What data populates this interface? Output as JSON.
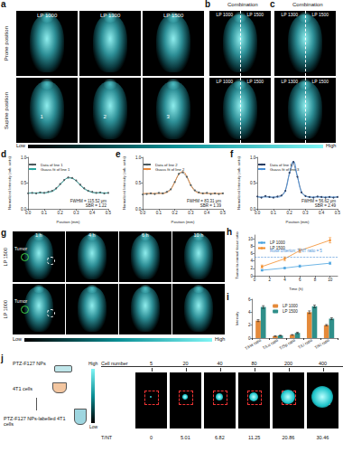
{
  "panel_a": {
    "letter": "a",
    "columns": [
      "LP 1000",
      "LP 1300",
      "LP 1500"
    ],
    "rows": [
      "Prone position",
      "Supine position"
    ],
    "markers": [
      "1",
      "2",
      "3"
    ]
  },
  "panel_b": {
    "letter": "b",
    "title": "Combination",
    "labels": [
      "LP 1000",
      "LP 1500"
    ]
  },
  "panel_c": {
    "letter": "c",
    "title": "Combination",
    "labels": [
      "LP 1300",
      "LP 1500"
    ]
  },
  "colorbar": {
    "low": "Low",
    "high": "High"
  },
  "panel_g": {
    "letter": "g",
    "times": [
      "1 h",
      "4 h",
      "6 h",
      "10 h"
    ],
    "rows": [
      "LP 1500",
      "LP 1000"
    ],
    "tumor_label": "Tumor"
  },
  "panel_j": {
    "letter": "j",
    "nps": "PTZ-F127 NPs",
    "cells": "4T1 cells",
    "labelled": "PTZ-F127 NPs-labelled 4T1 cells",
    "cell_number_label": "Cell number",
    "cell_numbers": [
      5,
      20,
      40,
      80,
      200,
      400
    ],
    "tnt_label": "T/NT",
    "tnt_values": [
      0,
      5.01,
      6.82,
      11.25,
      20.86,
      30.46
    ]
  },
  "chart_data": [
    {
      "letter": "d",
      "type": "line",
      "x_label": "Position (mm)",
      "y_label": "Normalized Intensity (arb. units)",
      "x": [
        0,
        0.025,
        0.05,
        0.075,
        0.1,
        0.125,
        0.15,
        0.175,
        0.2,
        0.225,
        0.25,
        0.275,
        0.3,
        0.325,
        0.35,
        0.375,
        0.4,
        0.425,
        0.45,
        0.475,
        0.5
      ],
      "series": [
        {
          "name": "Data of line 1",
          "color": "#4d5a5e",
          "marker": "circle",
          "values": [
            0.3,
            0.31,
            0.3,
            0.32,
            0.31,
            0.33,
            0.35,
            0.4,
            0.48,
            0.56,
            0.61,
            0.6,
            0.55,
            0.47,
            0.4,
            0.35,
            0.33,
            0.31,
            0.32,
            0.3,
            0.31
          ]
        },
        {
          "name": "Guass fit of line 1",
          "color": "#2aa6a0",
          "marker": "none",
          "values": [
            0.31,
            0.31,
            0.31,
            0.31,
            0.31,
            0.32,
            0.34,
            0.39,
            0.47,
            0.55,
            0.6,
            0.59,
            0.54,
            0.46,
            0.39,
            0.35,
            0.32,
            0.31,
            0.31,
            0.31,
            0.31
          ]
        }
      ],
      "xlim": [
        0,
        0.5
      ],
      "xticks": [
        {
          "value": 0,
          "label": "0.0"
        },
        0.1,
        0.2,
        0.3,
        0.4,
        0.5
      ],
      "ylim": [
        0,
        1
      ],
      "yticks": [
        {
          "value": 0,
          "label": "0.0"
        },
        0.5,
        {
          "value": 1,
          "label": "1.0"
        }
      ],
      "annotations": [
        "FWHM = 115.52 μm",
        "SBR = 1.22"
      ],
      "legend": "upper left",
      "grid": false
    },
    {
      "letter": "e",
      "type": "line",
      "x_label": "Position (mm)",
      "y_label": "Normalized Intensity (arb. units)",
      "x": [
        0,
        0.025,
        0.05,
        0.075,
        0.1,
        0.125,
        0.15,
        0.175,
        0.2,
        0.225,
        0.25,
        0.275,
        0.3,
        0.325,
        0.35,
        0.375,
        0.4,
        0.425,
        0.45,
        0.475,
        0.5
      ],
      "series": [
        {
          "name": "Data of line 2",
          "color": "#4d5a5e",
          "marker": "circle",
          "values": [
            0.28,
            0.29,
            0.3,
            0.29,
            0.31,
            0.3,
            0.33,
            0.38,
            0.52,
            0.68,
            0.71,
            0.62,
            0.46,
            0.36,
            0.32,
            0.3,
            0.31,
            0.29,
            0.3,
            0.29,
            0.3
          ]
        },
        {
          "name": "Guass fit of line 2",
          "color": "#e88a3c",
          "marker": "none",
          "values": [
            0.3,
            0.3,
            0.3,
            0.3,
            0.3,
            0.3,
            0.32,
            0.38,
            0.52,
            0.67,
            0.72,
            0.63,
            0.46,
            0.35,
            0.31,
            0.3,
            0.3,
            0.3,
            0.3,
            0.3,
            0.3
          ]
        }
      ],
      "xlim": [
        0,
        0.5
      ],
      "xticks": [
        {
          "value": 0,
          "label": "0.0"
        },
        0.1,
        0.2,
        0.3,
        0.4,
        0.5
      ],
      "ylim": [
        0,
        1
      ],
      "yticks": [
        {
          "value": 0,
          "label": "0.0"
        },
        0.5,
        {
          "value": 1,
          "label": "1.0"
        }
      ],
      "annotations": [
        "FWHM = 83.31 μm",
        "SBR = 1.39"
      ],
      "legend": "upper left",
      "grid": false
    },
    {
      "letter": "f",
      "type": "line",
      "x_label": "Position (mm)",
      "y_label": "Normalized Intensity (arb. units)",
      "x": [
        0,
        0.025,
        0.05,
        0.075,
        0.1,
        0.125,
        0.15,
        0.175,
        0.2,
        0.225,
        0.25,
        0.275,
        0.3,
        0.325,
        0.35,
        0.375,
        0.4,
        0.425,
        0.45,
        0.475,
        0.5
      ],
      "series": [
        {
          "name": "Data of line 3",
          "color": "#2b3f63",
          "marker": "circle",
          "values": [
            0.24,
            0.22,
            0.25,
            0.23,
            0.22,
            0.24,
            0.26,
            0.35,
            0.7,
            0.91,
            0.62,
            0.32,
            0.25,
            0.23,
            0.22,
            0.24,
            0.23,
            0.22,
            0.23,
            0.22,
            0.23
          ]
        },
        {
          "name": "Guass fit of line 3",
          "color": "#4a8fd6",
          "marker": "none",
          "values": [
            0.23,
            0.23,
            0.23,
            0.23,
            0.23,
            0.23,
            0.25,
            0.36,
            0.68,
            0.92,
            0.63,
            0.33,
            0.25,
            0.23,
            0.23,
            0.23,
            0.23,
            0.23,
            0.23,
            0.23,
            0.23
          ]
        }
      ],
      "xlim": [
        0,
        0.5
      ],
      "xticks": [
        {
          "value": 0,
          "label": "0.0"
        },
        0.1,
        0.2,
        0.3,
        0.4,
        0.5
      ],
      "ylim": [
        0,
        1
      ],
      "yticks": [
        {
          "value": 0,
          "label": "0.0"
        },
        0.5,
        {
          "value": 1,
          "label": "1.0"
        }
      ],
      "annotations": [
        "FWHM = 56.62 μm",
        "SBR = 2.49"
      ],
      "legend": "upper left",
      "grid": false
    },
    {
      "letter": "h",
      "type": "line",
      "x_label": "Time (h)",
      "y_label": "Tumor-to-normal tissue ratio",
      "x": [
        1,
        4,
        6,
        10
      ],
      "series": [
        {
          "name": "LP 1000",
          "color": "#4aa3df",
          "marker": "circle",
          "values": [
            1.5,
            2.1,
            2.6,
            3.4
          ],
          "errors": [
            0.2,
            0.2,
            0.3,
            0.3
          ]
        },
        {
          "name": "LP 1500",
          "color": "#f28c28",
          "marker": "circle",
          "values": [
            2.5,
            4.6,
            6.8,
            9.6
          ],
          "errors": [
            0.4,
            0.5,
            0.5,
            0.7
          ]
        }
      ],
      "threshold": {
        "value": 5,
        "label": "Rose criterion: T/NT ratio = 5",
        "line_style": "dashed"
      },
      "xlim": [
        0,
        11
      ],
      "xticks": [
        0,
        2,
        4,
        6,
        8,
        10
      ],
      "ylim": [
        0,
        11
      ],
      "yticks": [
        0,
        2,
        4,
        6,
        8,
        10
      ],
      "legend": "upper left",
      "grid": false
    },
    {
      "letter": "i",
      "type": "bar",
      "y_label": "Intensity",
      "categories": [
        "T/He ratio",
        "T/Lu ratio",
        "T/Sp ratio",
        "T/Li ratio",
        "T/Ki ratio"
      ],
      "series": [
        {
          "name": "LP 1000",
          "color": "#e58a3a",
          "values": [
            2.7,
            0.3,
            0.5,
            4.0,
            2.0
          ],
          "errors": [
            0.15,
            0.05,
            0.05,
            0.2,
            0.1
          ]
        },
        {
          "name": "LP 1500",
          "color": "#2f8f8a",
          "values": [
            4.8,
            0.4,
            0.8,
            4.9,
            3.0
          ],
          "errors": [
            0.2,
            0.05,
            0.1,
            0.2,
            0.15
          ]
        }
      ],
      "ylim": [
        0,
        6
      ],
      "yticks": [
        0,
        2,
        4,
        6
      ],
      "legend": "top",
      "grid": false
    }
  ]
}
